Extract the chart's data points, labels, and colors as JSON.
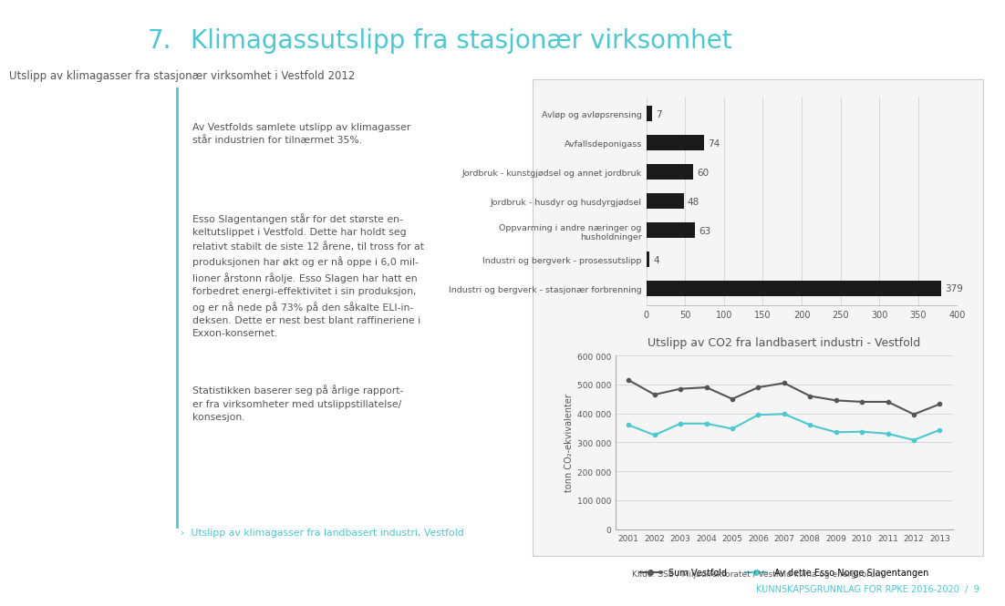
{
  "page_title_num": "7.",
  "page_title_text": "Klimagassutslipp fra stasjonær virksomhet",
  "page_title_color": "#4dc8d0",
  "left_text_paragraphs": [
    "Av Vestfolds samlete utslipp av klimagasser\nstår industrien for tilnærmet 35%.",
    "Esso Slagentangen står for det største en-\nkeltutslippet i Vestfold. Dette har holdt seg\nrelativt stabilt de siste 12 årene, til tross for at\nproduksjonen har økt og er nå oppe i 6,0 mil-\nlioner årstonn råolje. Esso Slagen har hatt en\nforbedret energi-effektivitet i sin produksjon,\nog er nå nede på 73% på den såkalte ELI-in-\ndeksen. Dette er nest best blant raffineriene i\nExxon-konsernet.",
    "Statistikken baserer seg på årlige rapport-\ner fra virksomheter med utslippstillatelse/\nkonsesjon."
  ],
  "left_link_text": "›  Utslipp av klimagasser fra landbasert industri, Vestfold",
  "right_source_text": "Kilde: SSB / Miljødirektoratet / Vestfold klima og energiforum",
  "bar_chart_title": "Utslipp av klimagasser fra stasjonær virksomhet i Vestfold 2012",
  "bar_categories": [
    "Avløp og avløpsrensing",
    "Avfallsdeponigass",
    "Jordbruk - kunstgjødsel og annet jordbruk",
    "Jordbruk - husdyr og husdyrgjødsel",
    "Oppvarming i andre næringer og\nhusholdninger",
    "Industri og bergverk - prosessutslipp",
    "Industri og bergverk - stasjonær forbrenning"
  ],
  "bar_values": [
    7,
    74,
    60,
    48,
    63,
    4,
    379
  ],
  "bar_color": "#1a1a1a",
  "bar_xlim": [
    0,
    400
  ],
  "bar_xticks": [
    0,
    50,
    100,
    150,
    200,
    250,
    300,
    350,
    400
  ],
  "line_chart_title": "Utslipp av CO2 fra landbasert industri - Vestfold",
  "line_years": [
    2001,
    2002,
    2003,
    2004,
    2005,
    2006,
    2007,
    2008,
    2009,
    2010,
    2011,
    2012,
    2013
  ],
  "sum_vestfold": [
    515000,
    465000,
    485000,
    490000,
    450000,
    490000,
    505000,
    460000,
    445000,
    440000,
    440000,
    397000,
    432000
  ],
  "esso_slagen": [
    360000,
    325000,
    365000,
    365000,
    347000,
    395000,
    398000,
    360000,
    335000,
    337000,
    330000,
    308000,
    343000
  ],
  "sum_color": "#555555",
  "esso_color": "#4dc8d0",
  "line_ylabel": "tonn CO₂-ekvivalenter",
  "line_ylim": [
    0,
    600000
  ],
  "line_yticks": [
    0,
    100000,
    200000,
    300000,
    400000,
    500000,
    600000
  ],
  "line_ytick_labels": [
    "0",
    "100 000",
    "200 000",
    "300 000",
    "400 000",
    "500 000",
    "600 000"
  ],
  "legend_sum": "Sum Vestfold",
  "legend_esso": "Av dette Esso Norge Slagentangen",
  "bg_color": "#ffffff",
  "panel_bg": "#f5f5f5",
  "text_color": "#555555",
  "divider_color": "#4dc8d0",
  "footer_color": "#4dc8d0",
  "footer_right": "KUNNSKAPSGRUNNLAG FOR RPKE 2016-2020  /  9",
  "page_num_color": "#4dc8d0"
}
